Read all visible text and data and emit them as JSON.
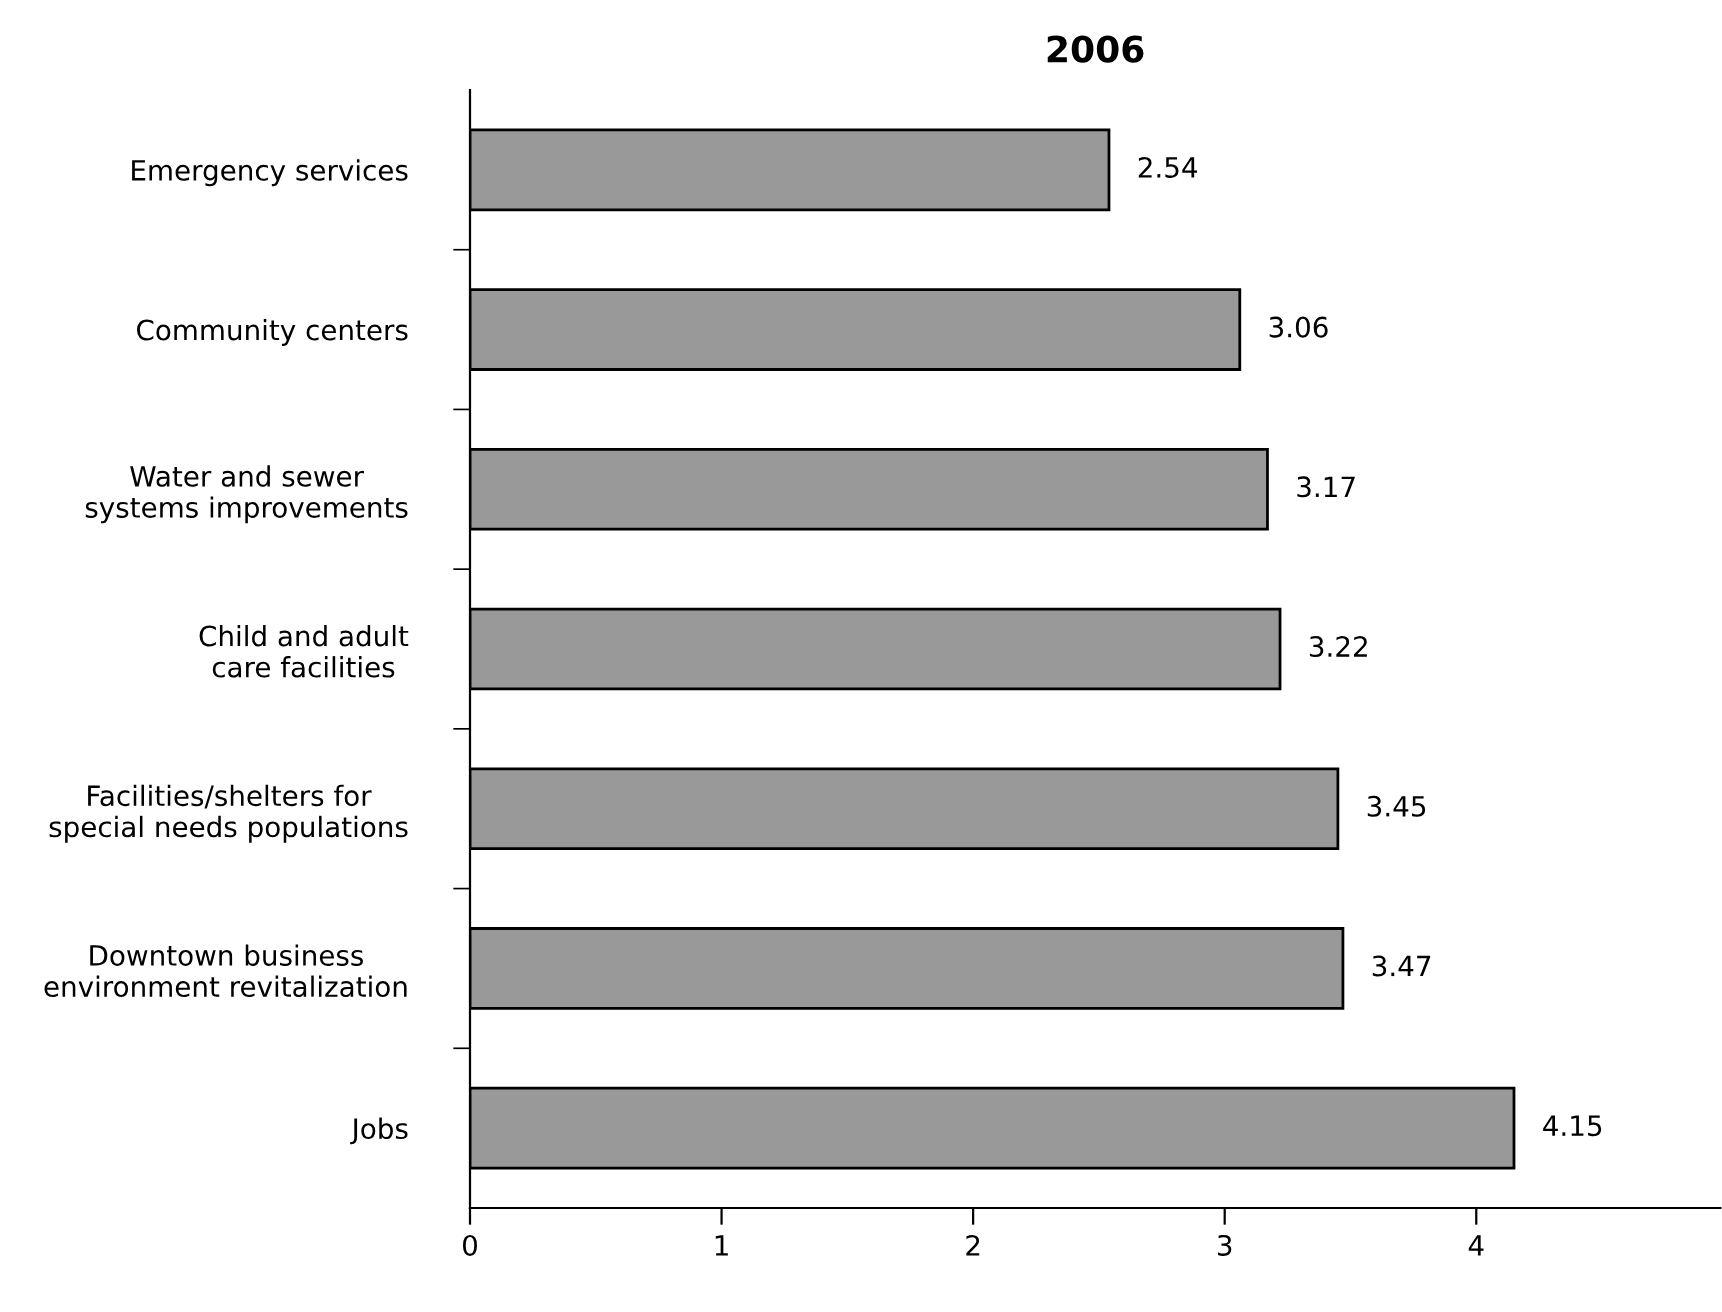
{
  "chart_data": {
    "type": "bar",
    "orientation": "horizontal",
    "title": "2006",
    "categories": [
      "Emergency services",
      "Community centers",
      "Water and sewer\nsystems improvements",
      "Child and adult\ncare facilities",
      "Facilities/shelters for\nspecial needs populations",
      "Downtown business\nenvironment revitalization",
      "Jobs"
    ],
    "values": [
      2.54,
      3.06,
      3.17,
      3.22,
      3.45,
      3.47,
      4.15
    ],
    "color": "#999999",
    "data_labels": true,
    "xlim": [
      0,
      4.97
    ],
    "xticks": [
      0,
      1,
      2,
      3,
      4
    ],
    "grid": false,
    "legend": false
  }
}
